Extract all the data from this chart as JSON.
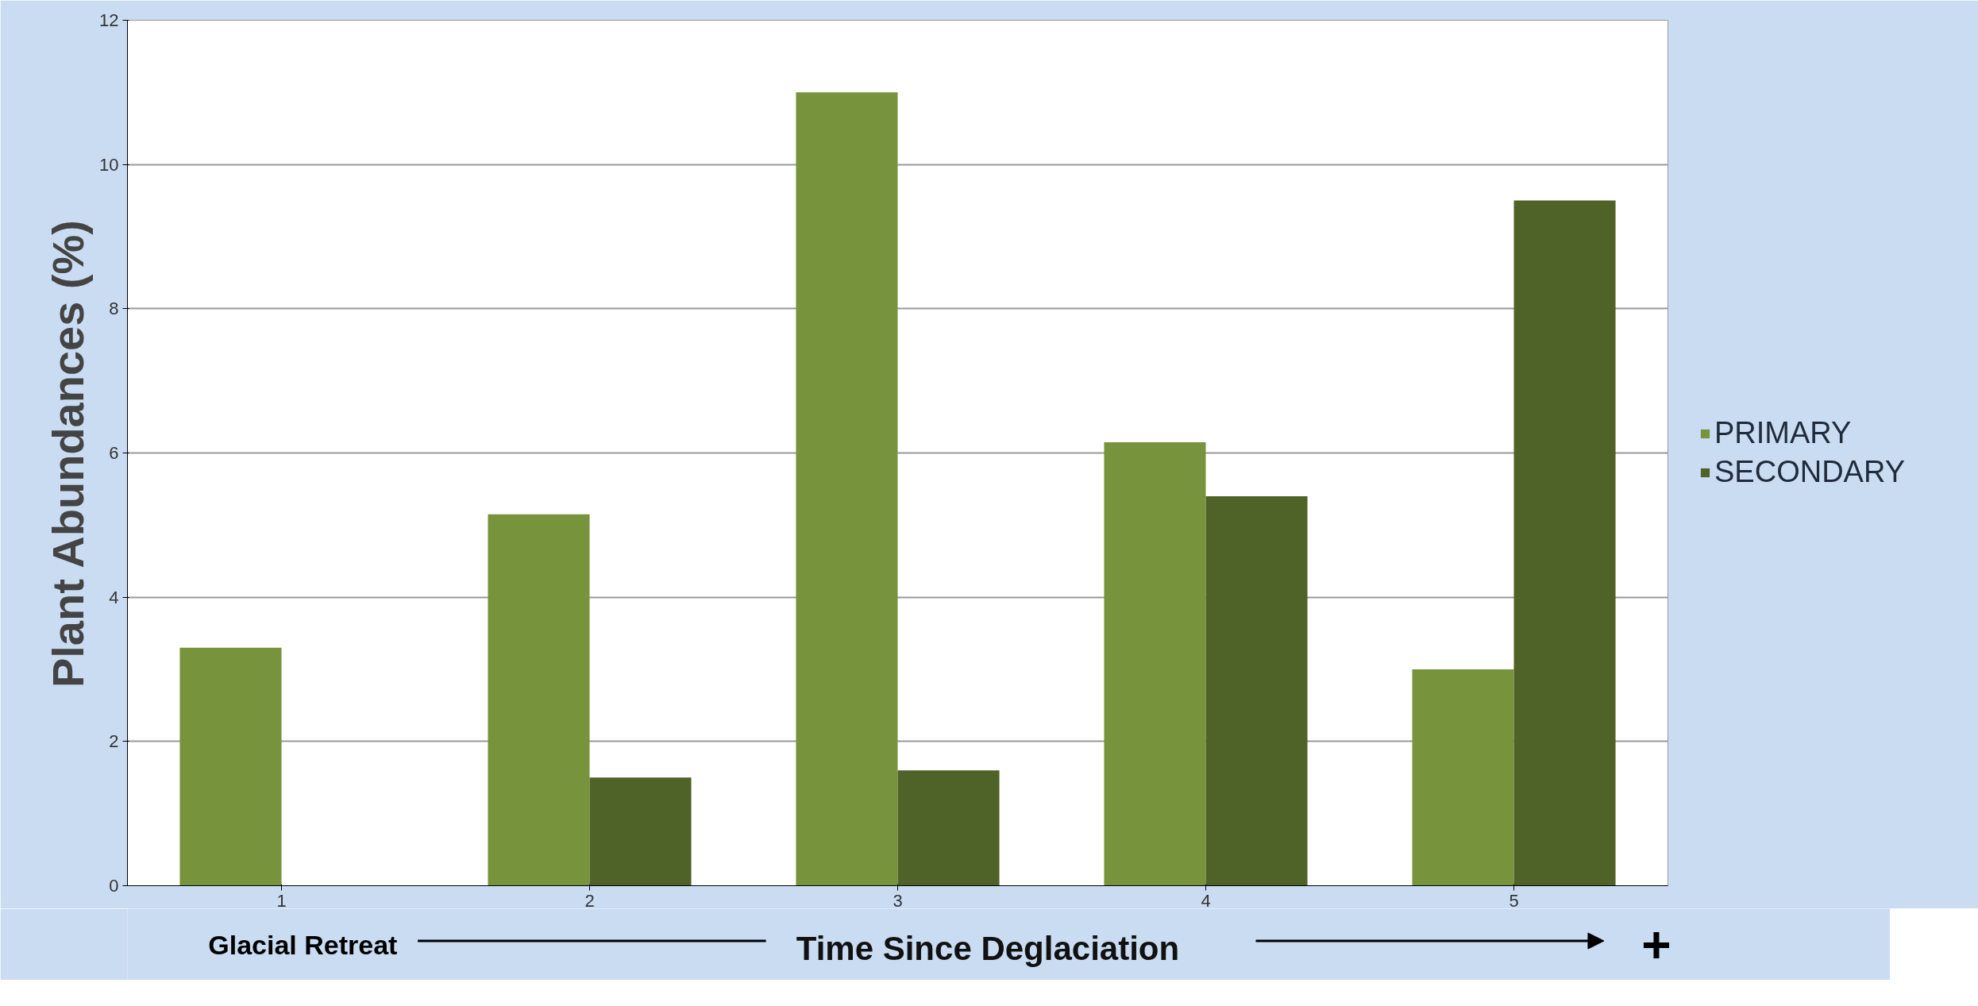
{
  "chart_data": {
    "type": "bar",
    "xlabel": "Time Since Deglaciation",
    "ylabel": "Plant Abundances (%)",
    "categories": [
      "1",
      "2",
      "3",
      "4",
      "5"
    ],
    "series": [
      {
        "name": "PRIMARY",
        "color": "#77933c",
        "values": [
          3.3,
          5.15,
          11.0,
          6.15,
          3.0
        ]
      },
      {
        "name": "SECONDARY",
        "color": "#4f6228",
        "values": [
          0,
          1.5,
          1.6,
          5.4,
          9.5
        ]
      }
    ],
    "ylim": [
      0,
      12
    ],
    "yticks": [
      0,
      2,
      4,
      6,
      8,
      10,
      12
    ],
    "grid": "y",
    "legend": "right",
    "annotations": [
      "Glacial Retreat",
      "+"
    ]
  }
}
